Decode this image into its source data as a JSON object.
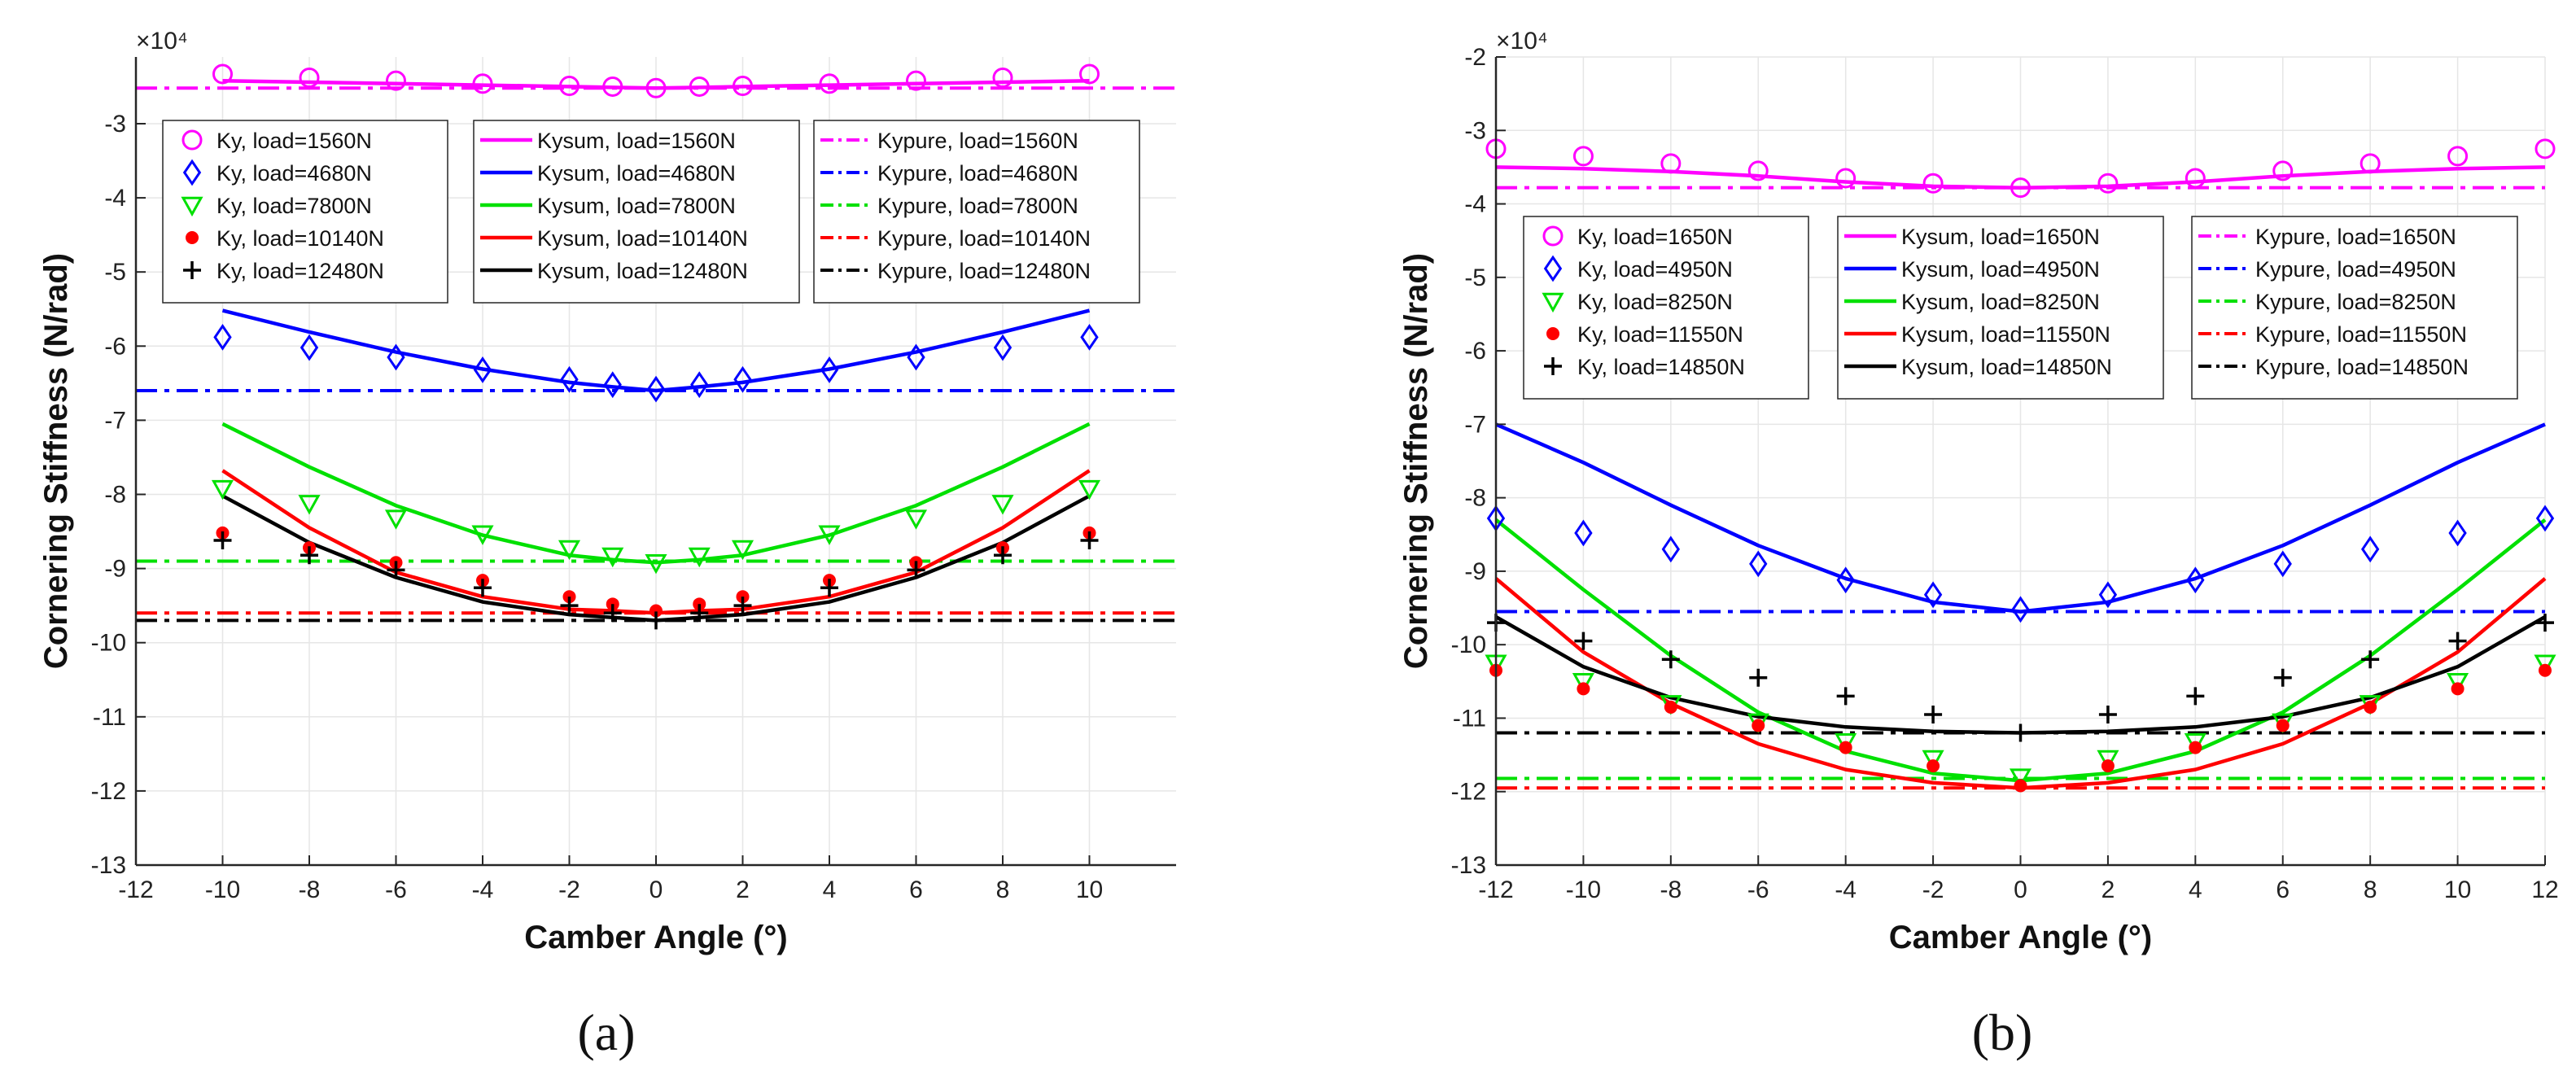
{
  "figure": {
    "panels": [
      {
        "label": "(a)",
        "multiplier": "×10⁴"
      },
      {
        "label": "(b)",
        "multiplier": "×10⁴"
      }
    ],
    "colors": {
      "magenta": "#ff00ff",
      "blue": "#0000ff",
      "green": "#00e000",
      "red": "#ff0000",
      "black": "#000000",
      "grid": "#e6e6e6",
      "axis": "#262626"
    }
  },
  "chart_data": [
    {
      "type": "line",
      "title": "",
      "panel_label": "(a)",
      "xlabel": "Camber Angle (°)",
      "ylabel": "Cornering Stiffness (N/rad)",
      "y_multiplier_label": "×10⁴",
      "xlim": [
        -12,
        12
      ],
      "ylim": [
        -13,
        -2.1
      ],
      "xticks": [
        -12,
        -10,
        -8,
        -6,
        -4,
        -2,
        0,
        2,
        4,
        6,
        8,
        10
      ],
      "yticks": [
        -3,
        -4,
        -5,
        -6,
        -7,
        -8,
        -9,
        -10,
        -11,
        -12,
        -13
      ],
      "grid": true,
      "measured_x": [
        -10,
        -8,
        -6,
        -4,
        -2,
        -1,
        0,
        1,
        2,
        4,
        6,
        8,
        10
      ],
      "model_x": [
        -10,
        -8,
        -6,
        -4,
        -2,
        -1,
        0,
        1,
        2,
        4,
        6,
        8,
        10
      ],
      "series": [
        {
          "name": "Ky, load=1560N",
          "color": "magenta",
          "kind": "circle",
          "values": [
            -2.33,
            -2.38,
            -2.42,
            -2.46,
            -2.49,
            -2.5,
            -2.52,
            -2.5,
            -2.49,
            -2.46,
            -2.42,
            -2.38,
            -2.33
          ]
        },
        {
          "name": "Ky, load=4680N",
          "color": "blue",
          "kind": "diamond",
          "values": [
            -5.88,
            -6.02,
            -6.15,
            -6.32,
            -6.45,
            -6.52,
            -6.58,
            -6.52,
            -6.45,
            -6.32,
            -6.15,
            -6.02,
            -5.88
          ]
        },
        {
          "name": "Ky, load=7800N",
          "color": "green",
          "kind": "triangle",
          "values": [
            -7.92,
            -8.12,
            -8.32,
            -8.53,
            -8.73,
            -8.83,
            -8.92,
            -8.83,
            -8.73,
            -8.53,
            -8.32,
            -8.12,
            -7.92
          ]
        },
        {
          "name": "Ky, load=10140N",
          "color": "red",
          "kind": "dot",
          "values": [
            -8.52,
            -8.72,
            -8.92,
            -9.16,
            -9.38,
            -9.48,
            -9.57,
            -9.48,
            -9.38,
            -9.16,
            -8.92,
            -8.72,
            -8.52
          ]
        },
        {
          "name": "Ky, load=12480N",
          "color": "black",
          "kind": "plus",
          "values": [
            -8.62,
            -8.82,
            -9.02,
            -9.26,
            -9.5,
            -9.6,
            -9.7,
            -9.6,
            -9.5,
            -9.26,
            -9.02,
            -8.82,
            -8.62
          ]
        },
        {
          "name": "Kysum, load=1560N",
          "color": "magenta",
          "kind": "solid",
          "values": [
            -2.42,
            -2.44,
            -2.46,
            -2.48,
            -2.5,
            -2.51,
            -2.52,
            -2.51,
            -2.5,
            -2.48,
            -2.46,
            -2.44,
            -2.42
          ]
        },
        {
          "name": "Kysum, load=4680N",
          "color": "blue",
          "kind": "solid",
          "values": [
            -5.52,
            -5.81,
            -6.08,
            -6.31,
            -6.49,
            -6.55,
            -6.6,
            -6.55,
            -6.49,
            -6.31,
            -6.08,
            -5.81,
            -5.52
          ]
        },
        {
          "name": "Kysum, load=7800N",
          "color": "green",
          "kind": "solid",
          "values": [
            -7.05,
            -7.63,
            -8.15,
            -8.55,
            -8.82,
            -8.88,
            -8.92,
            -8.88,
            -8.82,
            -8.55,
            -8.15,
            -7.63,
            -7.05
          ]
        },
        {
          "name": "Kysum, load=10140N",
          "color": "red",
          "kind": "solid",
          "values": [
            -7.68,
            -8.45,
            -9.05,
            -9.38,
            -9.55,
            -9.57,
            -9.6,
            -9.57,
            -9.55,
            -9.38,
            -9.05,
            -8.45,
            -7.68
          ]
        },
        {
          "name": "Kysum, load=12480N",
          "color": "black",
          "kind": "solid",
          "values": [
            -8.02,
            -8.65,
            -9.12,
            -9.45,
            -9.62,
            -9.66,
            -9.7,
            -9.66,
            -9.62,
            -9.45,
            -9.12,
            -8.65,
            -8.02
          ]
        },
        {
          "name": "Kypure, load=1560N",
          "color": "magenta",
          "kind": "dashdot",
          "constant": -2.52
        },
        {
          "name": "Kypure, load=4680N",
          "color": "blue",
          "kind": "dashdot",
          "constant": -6.6
        },
        {
          "name": "Kypure, load=7800N",
          "color": "green",
          "kind": "dashdot",
          "constant": -8.9
        },
        {
          "name": "Kypure, load=10140N",
          "color": "red",
          "kind": "dashdot",
          "constant": -9.6
        },
        {
          "name": "Kypure, load=12480N",
          "color": "black",
          "kind": "dashdot",
          "constant": -9.7
        }
      ],
      "legend": "top, three columns inside axes"
    },
    {
      "type": "line",
      "title": "",
      "panel_label": "(b)",
      "xlabel": "Camber Angle (°)",
      "ylabel": "Cornering Stiffness (N/rad)",
      "y_multiplier_label": "×10⁴",
      "xlim": [
        -12,
        12
      ],
      "ylim": [
        -13,
        -2
      ],
      "xticks": [
        -12,
        -10,
        -8,
        -6,
        -4,
        -2,
        0,
        2,
        4,
        6,
        8,
        10,
        12
      ],
      "yticks": [
        -2,
        -3,
        -4,
        -5,
        -6,
        -7,
        -8,
        -9,
        -10,
        -11,
        -12,
        -13
      ],
      "grid": true,
      "measured_x": [
        -12,
        -10,
        -8,
        -6,
        -4,
        -2,
        0,
        2,
        4,
        6,
        8,
        10,
        12
      ],
      "model_x": [
        -12,
        -10,
        -8,
        -6,
        -4,
        -2,
        0,
        2,
        4,
        6,
        8,
        10,
        12
      ],
      "series": [
        {
          "name": "Ky, load=1650N",
          "color": "magenta",
          "kind": "circle",
          "values": [
            -3.25,
            -3.35,
            -3.45,
            -3.55,
            -3.65,
            -3.72,
            -3.78,
            -3.72,
            -3.65,
            -3.55,
            -3.45,
            -3.35,
            -3.25
          ]
        },
        {
          "name": "Ky, load=4950N",
          "color": "blue",
          "kind": "diamond",
          "values": [
            -8.28,
            -8.48,
            -8.7,
            -8.9,
            -9.12,
            -9.32,
            -9.52,
            -9.32,
            -9.12,
            -8.9,
            -8.7,
            -8.48,
            -8.28
          ]
        },
        {
          "name": "Ky, load=8250N",
          "color": "green",
          "kind": "triangle",
          "values": [
            -10.25,
            -10.5,
            -10.8,
            -11.05,
            -11.32,
            -11.55,
            -11.8,
            -11.55,
            -11.32,
            -11.05,
            -10.8,
            -10.5,
            -10.25
          ]
        },
        {
          "name": "Ky, load=11550N",
          "color": "red",
          "kind": "dot",
          "values": [
            -10.35,
            -10.6,
            -10.85,
            -11.1,
            -11.4,
            -11.65,
            -11.92,
            -11.65,
            -11.4,
            -11.1,
            -10.85,
            -10.6,
            -10.35
          ]
        },
        {
          "name": "Ky, load=14850N",
          "color": "black",
          "kind": "plus",
          "values": [
            -9.7,
            -9.95,
            -10.2,
            -10.45,
            -10.7,
            -10.95,
            -11.2,
            -10.95,
            -10.7,
            -10.45,
            -10.2,
            -9.95,
            -9.7
          ]
        },
        {
          "name": "Kysum, load=1650N",
          "color": "magenta",
          "kind": "solid",
          "values": [
            -3.5,
            -3.52,
            -3.56,
            -3.62,
            -3.7,
            -3.76,
            -3.78,
            -3.76,
            -3.7,
            -3.62,
            -3.56,
            -3.52,
            -3.5
          ]
        },
        {
          "name": "Kysum, load=4950N",
          "color": "blue",
          "kind": "solid",
          "values": [
            -7.0,
            -7.52,
            -8.1,
            -8.65,
            -9.1,
            -9.42,
            -9.55,
            -9.42,
            -9.1,
            -8.65,
            -8.1,
            -7.52,
            -7.0
          ]
        },
        {
          "name": "Kysum, load=8250N",
          "color": "green",
          "kind": "solid",
          "values": [
            -8.3,
            -9.25,
            -10.15,
            -10.92,
            -11.45,
            -11.75,
            -11.85,
            -11.75,
            -11.45,
            -10.92,
            -10.15,
            -9.25,
            -8.3
          ]
        },
        {
          "name": "Kysum, load=11550N",
          "color": "red",
          "kind": "solid",
          "values": [
            -9.1,
            -10.1,
            -10.8,
            -11.35,
            -11.7,
            -11.88,
            -11.95,
            -11.88,
            -11.7,
            -11.35,
            -10.8,
            -10.1,
            -9.1
          ]
        },
        {
          "name": "Kysum, load=14850N",
          "color": "black",
          "kind": "solid",
          "values": [
            -9.62,
            -10.3,
            -10.72,
            -10.98,
            -11.12,
            -11.18,
            -11.2,
            -11.18,
            -11.12,
            -10.98,
            -10.72,
            -10.3,
            -9.62
          ]
        },
        {
          "name": "Kypure, load=1650N",
          "color": "magenta",
          "kind": "dashdot",
          "constant": -3.78
        },
        {
          "name": "Kypure, load=4950N",
          "color": "blue",
          "kind": "dashdot",
          "constant": -9.55
        },
        {
          "name": "Kypure, load=8250N",
          "color": "green",
          "kind": "dashdot",
          "constant": -11.82
        },
        {
          "name": "Kypure, load=11550N",
          "color": "red",
          "kind": "dashdot",
          "constant": -11.95
        },
        {
          "name": "Kypure, load=14850N",
          "color": "black",
          "kind": "dashdot",
          "constant": -11.2
        }
      ],
      "legend": "upper-middle, three columns inside axes"
    }
  ]
}
